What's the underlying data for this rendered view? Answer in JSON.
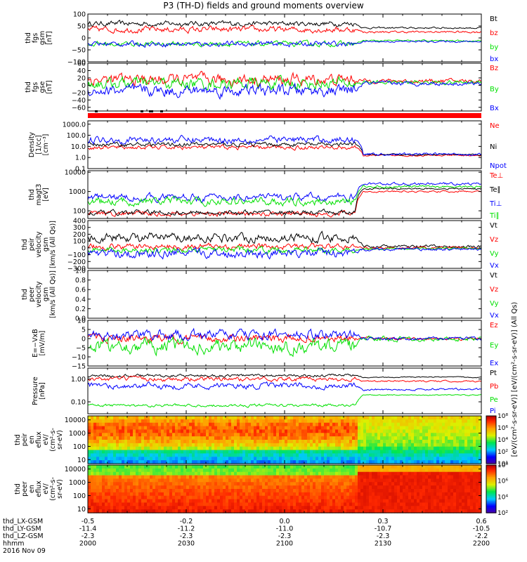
{
  "title": "P3 (TH-D) fields and ground moments overview",
  "date_label": "2016 Nov 09",
  "colors": {
    "black": "#000000",
    "red": "#ff0000",
    "green": "#00e000",
    "blue": "#0000ff"
  },
  "chart_data": [
    {
      "type": "line",
      "id": "fgs_gsm",
      "ylabel": [
        "thd",
        "fgs",
        "gsm",
        "[nT]"
      ],
      "ylim": [
        -100,
        100
      ],
      "yticks": [
        "100",
        "50",
        "0",
        "−50",
        "−100"
      ],
      "yticks_values": [
        100,
        50,
        0,
        -50,
        -100
      ],
      "series": [
        {
          "name": "Bt",
          "color": "black",
          "level_before": 60,
          "level_after": 42,
          "noise": 10
        },
        {
          "name": "bz",
          "color": "red",
          "level_before": 35,
          "level_after": 25,
          "noise": 12
        },
        {
          "name": "by",
          "color": "green",
          "level_before": -25,
          "level_after": -12,
          "noise": 10
        },
        {
          "name": "bx",
          "color": "blue",
          "level_before": -25,
          "level_after": -15,
          "noise": 10
        }
      ]
    },
    {
      "type": "line",
      "id": "fgs_gse",
      "ylabel": [
        "thd",
        "fgs",
        "gse",
        "[nT]"
      ],
      "ylim": [
        -70,
        60
      ],
      "yticks": [
        "60",
        "40",
        "20",
        "0",
        "−20",
        "−40",
        "−60"
      ],
      "yticks_values": [
        60,
        40,
        20,
        0,
        -20,
        -40,
        -60
      ],
      "series": [
        {
          "name": "Bz",
          "color": "red",
          "level_before": 15,
          "level_after": 12,
          "noise": 15
        },
        {
          "name": "By",
          "color": "green",
          "level_before": 5,
          "level_after": 8,
          "noise": 15
        },
        {
          "name": "Bx",
          "color": "blue",
          "level_before": -15,
          "level_after": 5,
          "noise": 15
        }
      ]
    },
    {
      "type": "line",
      "id": "density",
      "ylabel": [
        "Density",
        "[1/cc]",
        "[cm⁻³]"
      ],
      "log": true,
      "ylim": [
        0.1,
        2000
      ],
      "yticks": [
        "1000.0",
        "100.0",
        "10.0",
        "1.0",
        "0.1"
      ],
      "yticks_values": [
        1000,
        100,
        10,
        1,
        0.1
      ],
      "series": [
        {
          "name": "Ne",
          "color": "red",
          "level_before": 8,
          "level_after": 1.5,
          "noise": 0.3
        },
        {
          "name": "Ni",
          "color": "black",
          "level_before": 15,
          "level_after": 1.8,
          "noise": 0.3
        },
        {
          "name": "Npot",
          "color": "blue",
          "level_before": 40,
          "level_after": 2,
          "noise": 0.5
        }
      ]
    },
    {
      "type": "line",
      "id": "temperature",
      "ylabel": [
        "thd",
        "magt3",
        "[eV]"
      ],
      "log": true,
      "ylim": [
        40,
        12000
      ],
      "yticks": [
        "10000",
        "1000",
        "100"
      ],
      "yticks_values": [
        10000,
        1000,
        100
      ],
      "series": [
        {
          "name": "Te⊥",
          "color": "red",
          "level_before": 70,
          "level_after": 1000,
          "noise": 0.2
        },
        {
          "name": "Te∥",
          "color": "black",
          "level_before": 80,
          "level_after": 1400,
          "noise": 0.2
        },
        {
          "name": "Ti⊥",
          "color": "blue",
          "level_before": 500,
          "level_after": 2500,
          "noise": 0.3
        },
        {
          "name": "Ti∥",
          "color": "green",
          "level_before": 300,
          "level_after": 1800,
          "noise": 0.3
        }
      ]
    },
    {
      "type": "line",
      "id": "peir_velocity",
      "ylabel": [
        "thd",
        "peir",
        "velocity",
        "gsm",
        "[km/s (All Qs)]"
      ],
      "ylim": [
        -300,
        400
      ],
      "yticks": [
        "400",
        "300",
        "200",
        "100",
        "0",
        "−100",
        "−200",
        "−300"
      ],
      "yticks_values": [
        400,
        300,
        200,
        100,
        0,
        -100,
        -200,
        -300
      ],
      "series": [
        {
          "name": "Vt",
          "color": "black",
          "level_before": 150,
          "level_after": 20,
          "noise": 60
        },
        {
          "name": "Vz",
          "color": "red",
          "level_before": 20,
          "level_after": 0,
          "noise": 40
        },
        {
          "name": "Vy",
          "color": "green",
          "level_before": -30,
          "level_after": -10,
          "noise": 40
        },
        {
          "name": "Vx",
          "color": "blue",
          "level_before": -80,
          "level_after": -20,
          "noise": 60
        }
      ]
    },
    {
      "type": "line",
      "id": "peer_velocity",
      "ylabel": [
        "thd",
        "peer",
        "velocity",
        "gsm",
        "[km/s (All Qs)]"
      ],
      "ylim": [
        0,
        1
      ],
      "yticks": [
        "1.0",
        "0.8",
        "0.6",
        "0.4",
        "0.2",
        "0.0"
      ],
      "yticks_values": [
        1,
        0.8,
        0.6,
        0.4,
        0.2,
        0
      ],
      "series": [
        {
          "name": "Vt",
          "color": "black",
          "empty": true
        },
        {
          "name": "Vz",
          "color": "red",
          "empty": true
        },
        {
          "name": "Vy",
          "color": "green",
          "empty": true
        },
        {
          "name": "Vx",
          "color": "blue",
          "empty": true
        }
      ]
    },
    {
      "type": "line",
      "id": "efield",
      "ylabel": [
        "E=−VxB",
        "[mV/m]"
      ],
      "ylim": [
        -15,
        10
      ],
      "yticks": [
        "10",
        "5",
        "0",
        "−5",
        "−10",
        "−15"
      ],
      "yticks_values": [
        10,
        5,
        0,
        -5,
        -10,
        -15
      ],
      "series": [
        {
          "name": "Ez",
          "color": "red",
          "level_before": 0,
          "level_after": 0,
          "noise": 2
        },
        {
          "name": "Ey",
          "color": "green",
          "level_before": -4,
          "level_after": 0,
          "noise": 3.5
        },
        {
          "name": "Ex",
          "color": "blue",
          "level_before": 2,
          "level_after": 0,
          "noise": 2.5
        }
      ]
    },
    {
      "type": "line",
      "id": "pressure",
      "ylabel": [
        "Pressure",
        "[nPa]"
      ],
      "log": true,
      "ylim": [
        0.03,
        3
      ],
      "yticks": [
        "1.00",
        "0.10"
      ],
      "yticks_values": [
        1,
        0.1
      ],
      "series": [
        {
          "name": "Pt",
          "color": "black",
          "level_before": 1.4,
          "level_after": 1.2,
          "noise": 0.1
        },
        {
          "name": "Pb",
          "color": "red",
          "level_before": 1.0,
          "level_after": 0.8,
          "noise": 0.15
        },
        {
          "name": "Pe",
          "color": "green",
          "level_before": 0.07,
          "level_after": 0.2,
          "noise": 0.1
        },
        {
          "name": "Pi",
          "color": "blue",
          "level_before": 0.5,
          "level_after": 0.35,
          "noise": 0.2
        }
      ]
    },
    {
      "type": "heatmap",
      "id": "peir_eflux",
      "ylabel": [
        "thd",
        "peir",
        "en",
        "eflux",
        "eV/",
        "(cm²-s-",
        "sr-eV)"
      ],
      "log": true,
      "ylim": [
        5,
        20000
      ],
      "yticks": [
        "10000",
        "1000",
        "100",
        "10"
      ],
      "yticks_values": [
        10000,
        1000,
        100,
        10
      ],
      "colorbar": {
        "min_exp": 1,
        "max_exp": 8,
        "ticks": [
          "10¹",
          "10²",
          "10⁴",
          "10⁶",
          "10⁸"
        ]
      }
    },
    {
      "type": "heatmap",
      "id": "peer_eflux",
      "ylabel": [
        "thd",
        "peer",
        "en",
        "eflux",
        "eV/",
        "(cm²-s-",
        "sr-eV)"
      ],
      "log": true,
      "ylim": [
        5,
        20000
      ],
      "yticks": [
        "10000",
        "1000",
        "100",
        "10"
      ],
      "yticks_values": [
        10000,
        1000,
        100,
        10
      ],
      "colorbar": {
        "min_exp": 1,
        "max_exp": 8,
        "ticks": [
          "10²",
          "10⁴",
          "10⁶",
          "10⁸"
        ]
      }
    }
  ],
  "colorbar_label": "[eV/(cm²-s-sr-eV)] [eV/(cm²-s-sr-eV)] (All Qs)",
  "xaxis": {
    "row_labels": [
      "thd_LX-GSM",
      "thd_LY-GSM",
      "thd_LZ-GSM",
      "hhmm"
    ],
    "ticks": [
      {
        "x": "-0.5",
        "y": "-11.4",
        "z": "-2.3",
        "hhmm": "2000"
      },
      {
        "x": "-0.2",
        "y": "-11.2",
        "z": "-2.3",
        "hhmm": "2030"
      },
      {
        "x": "0.0",
        "y": "-11.0",
        "z": "-2.3",
        "hhmm": "2100"
      },
      {
        "x": "0.3",
        "y": "-10.7",
        "z": "-2.3",
        "hhmm": "2130"
      },
      {
        "x": "0.6",
        "y": "-10.5",
        "z": "-2.2",
        "hhmm": "2200"
      }
    ]
  }
}
